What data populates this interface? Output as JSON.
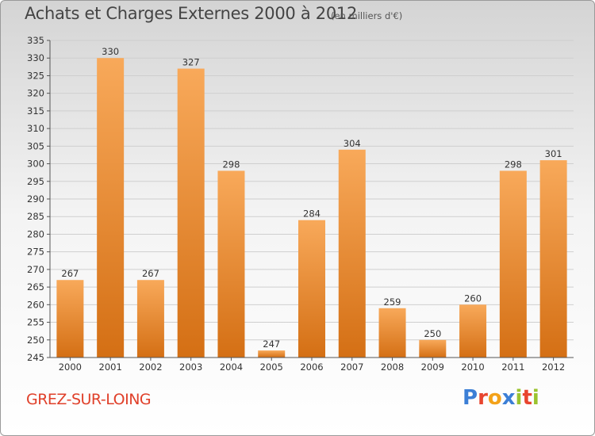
{
  "header": {
    "title": "Achats et Charges Externes 2000 à 2012",
    "unit": "(en milliers d'€)"
  },
  "footer": {
    "city": "GREZ-SUR-LOING",
    "logo_text": "Proxiti",
    "logo_colors": [
      "#3c7fd6",
      "#e8452f",
      "#f3a21a",
      "#3c7fd6",
      "#9bc32f",
      "#e8452f",
      "#9bc32f"
    ]
  },
  "colors": {
    "bar_light": "#f8a95a",
    "bar_dark": "#d46f14",
    "text": "#333333",
    "grid": "#cfcfcf"
  },
  "chart_data": {
    "type": "bar",
    "title": "Achats et Charges Externes 2000 à 2012",
    "subtitle": "(en milliers d'€)",
    "xlabel": "",
    "ylabel": "",
    "categories": [
      "2000",
      "2001",
      "2002",
      "2003",
      "2004",
      "2005",
      "2006",
      "2007",
      "2008",
      "2009",
      "2010",
      "2011",
      "2012"
    ],
    "values": [
      267,
      330,
      267,
      327,
      298,
      247,
      284,
      304,
      259,
      250,
      260,
      298,
      301
    ],
    "data_labels": [
      "267",
      "330",
      "267",
      "327",
      "298",
      "247",
      "284",
      "304",
      "259",
      "250",
      "260",
      "298",
      "301"
    ],
    "ylim": [
      245,
      335
    ],
    "yticks": [
      "245",
      "250",
      "255",
      "260",
      "265",
      "270",
      "275",
      "280",
      "285",
      "290",
      "295",
      "300",
      "305",
      "310",
      "315",
      "320",
      "325",
      "330",
      "335"
    ],
    "grid": true,
    "legend": "none"
  }
}
